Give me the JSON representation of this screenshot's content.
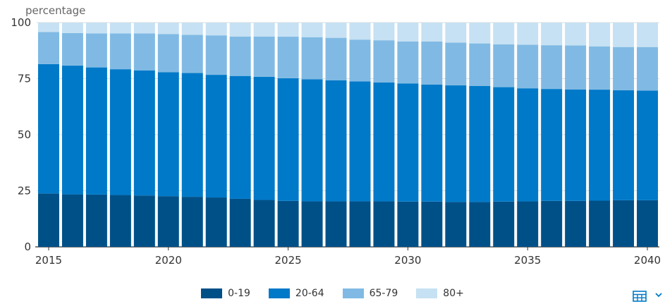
{
  "chart_data": {
    "type": "bar",
    "stacked": true,
    "ylabel": "percentage",
    "ylim": [
      0,
      100
    ],
    "yticks": [
      0,
      25,
      50,
      75,
      100
    ],
    "xticks": [
      "2015",
      "2020",
      "2025",
      "2030",
      "2035",
      "2040"
    ],
    "categories": [
      "2015",
      "2016",
      "2017",
      "2018",
      "2019",
      "2020",
      "2021",
      "2022",
      "2023",
      "2024",
      "2025",
      "2026",
      "2027",
      "2028",
      "2029",
      "2030",
      "2031",
      "2032",
      "2033",
      "2034",
      "2035",
      "2036",
      "2037",
      "2038",
      "2039",
      "2040"
    ],
    "series": [
      {
        "name": "0-19",
        "color": "#005088",
        "values": [
          23.8,
          23.4,
          23.3,
          23.1,
          22.9,
          22.6,
          22.3,
          22.0,
          21.4,
          20.9,
          20.5,
          20.3,
          20.3,
          20.3,
          20.3,
          20.2,
          20.2,
          20.0,
          20.0,
          20.2,
          20.3,
          20.5,
          20.5,
          20.6,
          20.8,
          20.8
        ]
      },
      {
        "name": "20-64",
        "color": "#0079c8",
        "values": [
          57.7,
          57.4,
          56.7,
          56.1,
          55.8,
          55.3,
          55.2,
          54.7,
          54.8,
          54.9,
          54.7,
          54.4,
          54.0,
          53.5,
          53.0,
          52.6,
          52.2,
          52.0,
          51.7,
          51.0,
          50.4,
          49.9,
          49.7,
          49.5,
          49.0,
          48.9
        ]
      },
      {
        "name": "65-79",
        "color": "#80bae4",
        "values": [
          14.3,
          14.5,
          15.2,
          16.0,
          16.5,
          17.0,
          17.0,
          17.6,
          17.6,
          18.0,
          18.5,
          18.8,
          18.9,
          18.6,
          18.8,
          18.8,
          19.2,
          19.1,
          19.0,
          19.1,
          19.4,
          19.5,
          19.6,
          19.3,
          19.3,
          19.4
        ]
      },
      {
        "name": "80+",
        "color": "#c6e1f3",
        "values": [
          4.2,
          4.7,
          4.8,
          4.8,
          4.8,
          5.1,
          5.5,
          5.7,
          6.2,
          6.2,
          6.3,
          6.5,
          6.8,
          7.6,
          7.9,
          8.4,
          8.4,
          8.9,
          9.3,
          9.7,
          9.9,
          10.1,
          10.2,
          10.6,
          10.9,
          10.9
        ]
      }
    ]
  },
  "icons": {
    "table": "table-icon",
    "more": "chevron-icon"
  }
}
